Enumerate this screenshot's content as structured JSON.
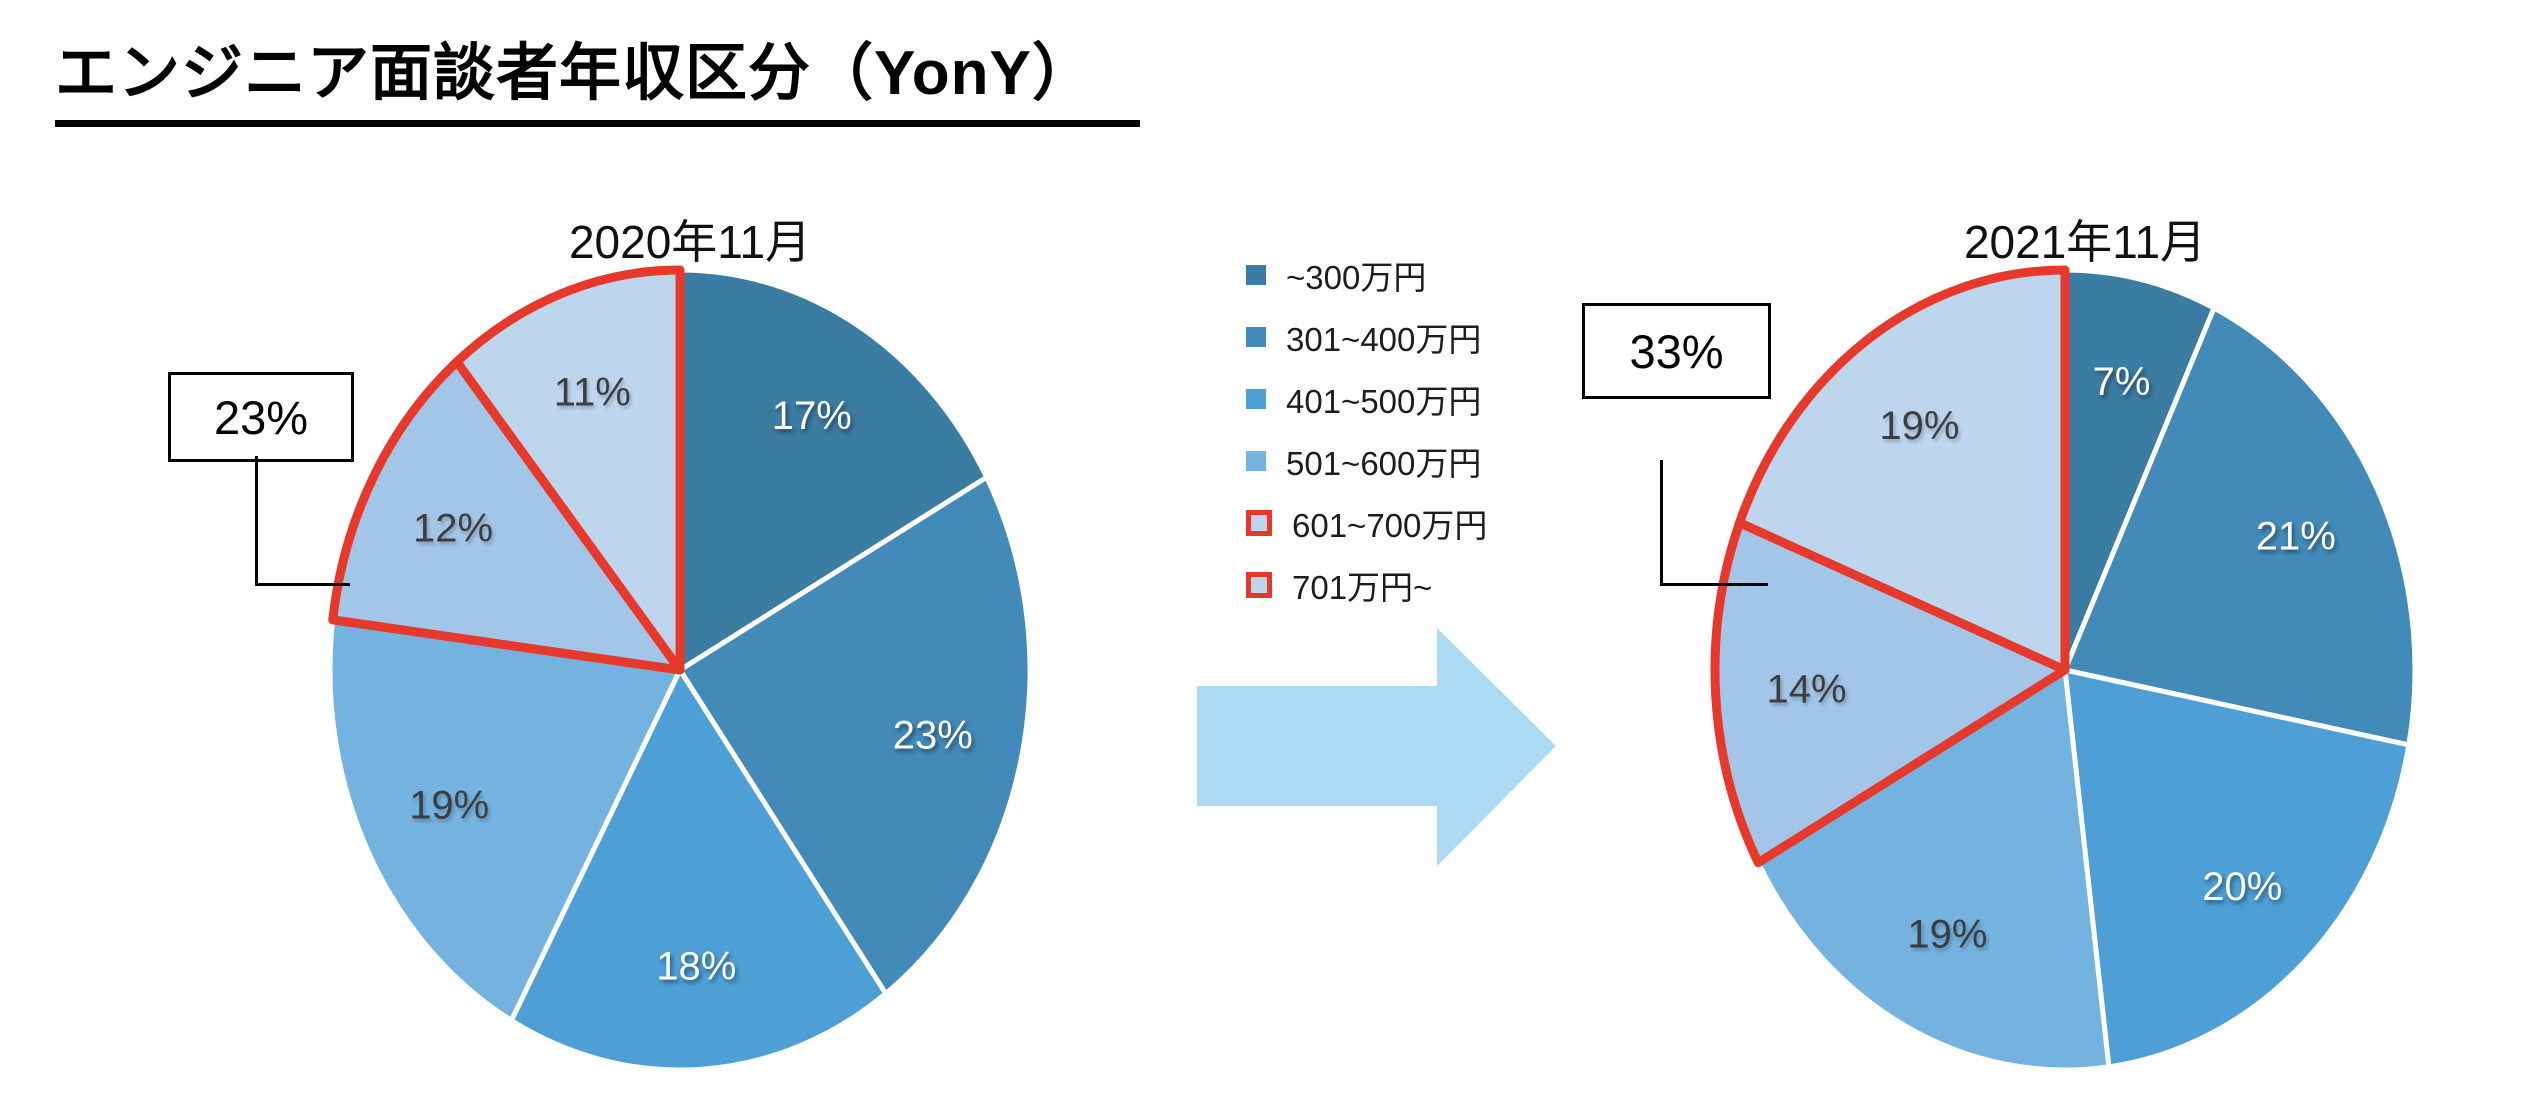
{
  "page_title": "エンジニア面談者年収区分（YonY）",
  "colors": {
    "slices": [
      "#3B7CA3",
      "#428BB8",
      "#4D9FD6",
      "#74B2E0",
      "#A3C6E8",
      "#BDD6EE"
    ],
    "highlight_red": "#E6392C",
    "separator": "#FFFFFF",
    "label_light": "#FFFFFF",
    "label_dark": "#3D3D3D",
    "arrow": "#ABDAF2",
    "title_text": "#000000"
  },
  "legend": {
    "items": [
      {
        "label": "~300万円",
        "color": "#3B7CA3",
        "highlighted": false
      },
      {
        "label": "301~400万円",
        "color": "#428BB8",
        "highlighted": false
      },
      {
        "label": "401~500万円",
        "color": "#4D9FD6",
        "highlighted": false
      },
      {
        "label": "501~600万円",
        "color": "#74B2E0",
        "highlighted": false
      },
      {
        "label": "601~700万円",
        "color": "#BDD6EE",
        "highlighted": true
      },
      {
        "label": "701万円~",
        "color": "#BDD6EE",
        "highlighted": true
      }
    ],
    "highlight_border_color": "#E6392C"
  },
  "chart_data": [
    {
      "type": "pie",
      "title": "2020年11月",
      "unit": "%",
      "direction": "clockwise",
      "start_angle_deg": 0,
      "categories": [
        "~300万円",
        "301~400万円",
        "401~500万円",
        "501~600万円",
        "601~700万円",
        "701万円~"
      ],
      "values": [
        17,
        23,
        18,
        19,
        12,
        11
      ],
      "labels": [
        "17%",
        "23%",
        "18%",
        "19%",
        "12%",
        "11%"
      ],
      "highlighted_categories": [
        "601~700万円",
        "701万円~"
      ],
      "callout": {
        "text": "23%"
      }
    },
    {
      "type": "pie",
      "title": "2021年11月",
      "unit": "%",
      "direction": "clockwise",
      "start_angle_deg": 0,
      "categories": [
        "~300万円",
        "301~400万円",
        "401~500万円",
        "501~600万円",
        "601~700万円",
        "701万円~"
      ],
      "values": [
        7,
        21,
        20,
        19,
        14,
        19
      ],
      "labels": [
        "7%",
        "21%",
        "20%",
        "19%",
        "14%",
        "19%"
      ],
      "highlighted_categories": [
        "601~700万円",
        "701万円~"
      ],
      "callout": {
        "text": "33%"
      }
    }
  ]
}
